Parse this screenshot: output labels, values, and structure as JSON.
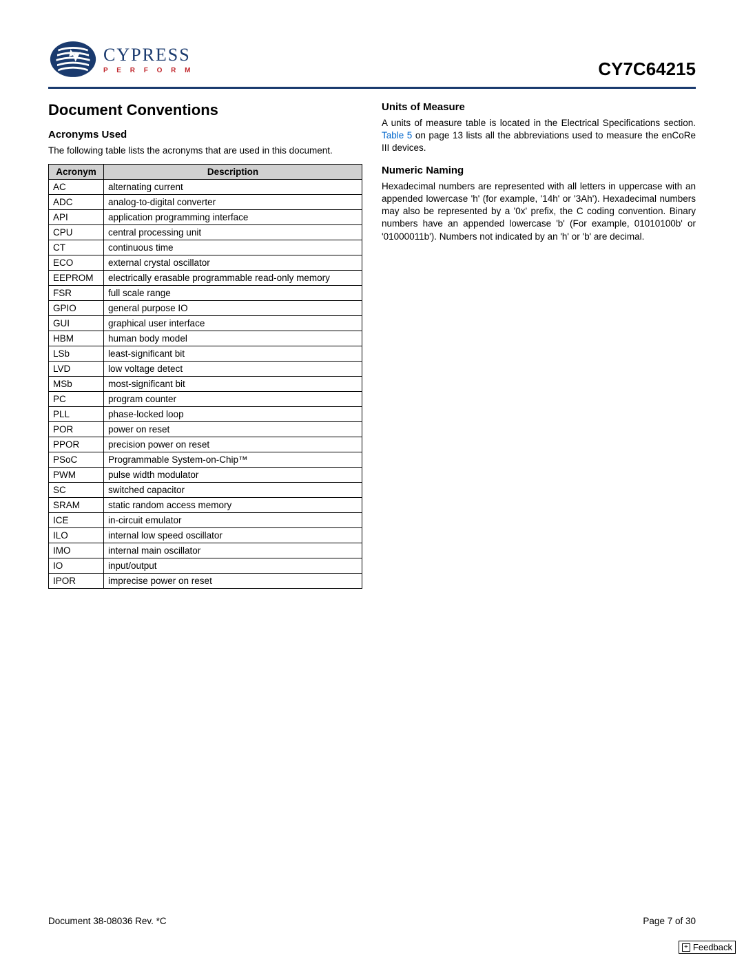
{
  "header": {
    "logo_word": "CYPRESS",
    "logo_tagline": "P E R F O R M",
    "part_number": "CY7C64215"
  },
  "left": {
    "h1": "Document Conventions",
    "h2": "Acronyms Used",
    "intro": "The following table lists the acronyms that are used in this document.",
    "table": {
      "col1": "Acronym",
      "col2": "Description",
      "rows": [
        {
          "a": "AC",
          "d": "alternating current"
        },
        {
          "a": "ADC",
          "d": "analog-to-digital converter"
        },
        {
          "a": "API",
          "d": "application programming interface"
        },
        {
          "a": "CPU",
          "d": "central processing unit"
        },
        {
          "a": "CT",
          "d": "continuous time"
        },
        {
          "a": "ECO",
          "d": "external crystal oscillator"
        },
        {
          "a": "EEPROM",
          "d": "electrically erasable programmable read-only memory"
        },
        {
          "a": "FSR",
          "d": "full scale range"
        },
        {
          "a": "GPIO",
          "d": "general purpose IO"
        },
        {
          "a": "GUI",
          "d": "graphical user interface"
        },
        {
          "a": "HBM",
          "d": "human body model"
        },
        {
          "a": "LSb",
          "d": "least-significant bit"
        },
        {
          "a": "LVD",
          "d": "low voltage detect"
        },
        {
          "a": "MSb",
          "d": "most-significant bit"
        },
        {
          "a": "PC",
          "d": "program counter"
        },
        {
          "a": "PLL",
          "d": "phase-locked loop"
        },
        {
          "a": "POR",
          "d": "power on reset"
        },
        {
          "a": "PPOR",
          "d": "precision power on reset"
        },
        {
          "a": "PSoC",
          "d": "Programmable System-on-Chip™"
        },
        {
          "a": "PWM",
          "d": "pulse width modulator"
        },
        {
          "a": "SC",
          "d": "switched capacitor"
        },
        {
          "a": "SRAM",
          "d": "static random access memory"
        },
        {
          "a": "ICE",
          "d": "in-circuit emulator"
        },
        {
          "a": "ILO",
          "d": "internal low speed oscillator"
        },
        {
          "a": "IMO",
          "d": "internal main oscillator"
        },
        {
          "a": "IO",
          "d": "input/output"
        },
        {
          "a": "IPOR",
          "d": "imprecise power on reset"
        }
      ]
    }
  },
  "right": {
    "units_h2": "Units of Measure",
    "units_p_pre": "A units of measure table is located in the Electrical Specifications section. ",
    "units_link": "Table 5",
    "units_p_post": " on page 13 lists all the abbreviations used to measure the enCoRe III devices.",
    "numeric_h2": "Numeric Naming",
    "numeric_p": "Hexadecimal numbers are represented with all letters in uppercase with an appended lowercase 'h' (for example, '14h' or '3Ah'). Hexadecimal numbers may also be represented by a '0x' prefix, the C coding convention. Binary numbers have an appended lowercase 'b' (For example, 01010100b' or '01000011b'). Numbers not indicated by an 'h' or 'b' are decimal."
  },
  "footer": {
    "doc": "Document 38-08036 Rev. *C",
    "page": "Page 7 of 30",
    "feedback": "Feedback"
  },
  "colors": {
    "brand_blue": "#1a3a6e",
    "brand_red": "#c1272d",
    "link_blue": "#0066cc",
    "table_header_bg": "#d0d0d0"
  }
}
